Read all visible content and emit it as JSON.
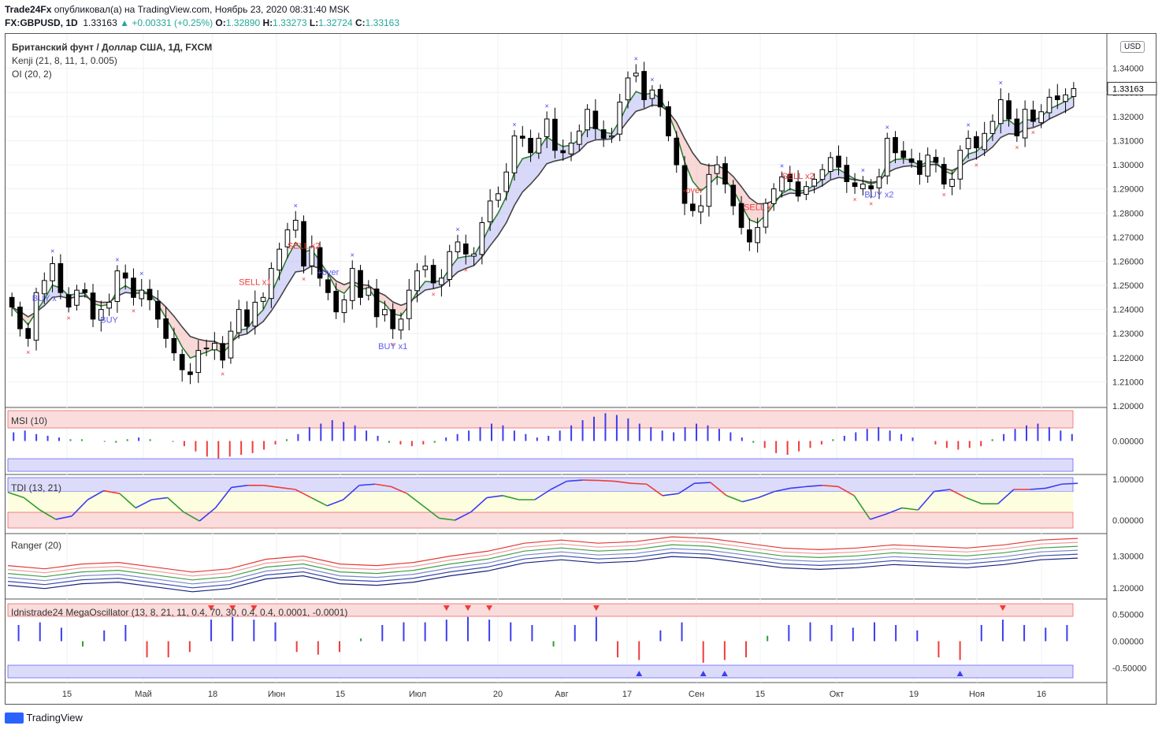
{
  "header": {
    "author": "Trade24Fx",
    "published": "опубликовал(а) на TradingView.com, Ноябрь 23, 2020 08:31:40 MSK",
    "symbol": "FX:GBPUSD, 1D",
    "last": "1.33163",
    "change": "+0.00331 (+0.25%)",
    "o_label": "O:",
    "o": "1.32890",
    "h_label": "H:",
    "h": "1.33273",
    "l_label": "L:",
    "l": "1.32724",
    "c_label": "C:",
    "c": "1.33163"
  },
  "legends": {
    "main": "Британский фунт / Доллар США, 1Д, FXCM",
    "kenji": "Kenji (21, 8, 11, 1, 0.005)",
    "oi": "OI (20, 2)",
    "msi": "MSI (10)",
    "tdi": "TDI (13, 21)",
    "ranger": "Ranger (20)",
    "mega": "Idnistrade24 MegaOscillator (13, 8, 21, 11, 0.4, 70, 30, 0.4, 0.4, 0.0001, -0.0001)"
  },
  "currency_badge": "USD",
  "last_price_label": "1.33163",
  "footer": "TradingView",
  "x_axis_labels": [
    "15",
    "Май",
    "18",
    "Июн",
    "15",
    "Июл",
    "20",
    "Авг",
    "17",
    "Сен",
    "15",
    "Окт",
    "19",
    "Ноя",
    "16"
  ],
  "colors": {
    "bull": "#ffffff",
    "bear": "#000000",
    "blue": "#3d3df0",
    "red": "#ef3b3b",
    "green": "#2e9e2e",
    "up_text": "#26a69a"
  },
  "chart_data": [
    {
      "type": "candlestick",
      "name": "Британский фунт / Доллар США, 1Д, FXCM",
      "y_ticks": [
        "1.34000",
        "1.33000",
        "1.32000",
        "1.31000",
        "1.30000",
        "1.29000",
        "1.28000",
        "1.27000",
        "1.26000",
        "1.25000",
        "1.24000",
        "1.23000",
        "1.22000",
        "1.21000",
        "1.20000"
      ],
      "ylim": [
        1.2,
        1.352
      ],
      "x_range": [
        "Апр",
        "Ноя 23"
      ],
      "close_path": [
        1.241,
        1.232,
        1.228,
        1.247,
        1.252,
        1.259,
        1.247,
        1.241,
        1.248,
        1.247,
        1.236,
        1.24,
        1.243,
        1.256,
        1.253,
        1.245,
        1.248,
        1.244,
        1.236,
        1.228,
        1.222,
        1.215,
        1.213,
        1.223,
        1.224,
        1.226,
        1.219,
        1.231,
        1.24,
        1.233,
        1.243,
        1.245,
        1.257,
        1.265,
        1.273,
        1.277,
        1.258,
        1.266,
        1.253,
        1.247,
        1.239,
        1.244,
        1.257,
        1.245,
        1.249,
        1.237,
        1.24,
        1.232,
        1.236,
        1.248,
        1.256,
        1.258,
        1.251,
        1.253,
        1.264,
        1.268,
        1.263,
        1.263,
        1.276,
        1.285,
        1.288,
        1.297,
        1.312,
        1.311,
        1.305,
        1.311,
        1.319,
        1.306,
        1.305,
        1.309,
        1.314,
        1.323,
        1.315,
        1.311,
        1.312,
        1.326,
        1.336,
        1.338,
        1.327,
        1.331,
        1.324,
        1.312,
        1.3,
        1.284,
        1.281,
        1.283,
        1.296,
        1.3,
        1.292,
        1.283,
        1.274,
        1.268,
        1.274,
        1.284,
        1.29,
        1.295,
        1.293,
        1.287,
        1.291,
        1.294,
        1.298,
        1.303,
        1.299,
        1.293,
        1.291,
        1.292,
        1.29,
        1.295,
        1.311,
        1.305,
        1.303,
        1.301,
        1.296,
        1.304,
        1.301,
        1.292,
        1.294,
        1.306,
        1.311,
        1.307,
        1.313,
        1.318,
        1.327,
        1.319,
        1.312,
        1.323,
        1.318,
        1.322,
        1.328,
        1.327,
        1.329,
        1.3316
      ],
      "annotations": [
        "BUY x",
        "BUY",
        "+over",
        "SELL x2",
        "SELL x1",
        "BUY x1",
        "-over",
        "SELL x",
        "SELL x2",
        "BUY x2"
      ],
      "indicators": [
        "Kenji (21, 8, 11, 1, 0.005)",
        "OI (20, 2)"
      ]
    },
    {
      "type": "histogram",
      "name": "MSI (10)",
      "y_ticks": [
        "0.00000"
      ],
      "series": [
        {
          "values": [
            0.5,
            0.6,
            0.4,
            0.3,
            0.2,
            0.1,
            0.1,
            0.0,
            -0.05,
            -0.1,
            0.1,
            0.2,
            0.1,
            0.0,
            -0.05,
            -0.3,
            -0.6,
            -0.9,
            -1.0,
            -0.9,
            -0.8,
            -0.7,
            -0.5,
            -0.2,
            0.1,
            0.4,
            0.8,
            1.0,
            1.2,
            1.1,
            0.9,
            0.6,
            0.3,
            -0.1,
            -0.2,
            -0.3,
            -0.2,
            -0.1,
            0.2,
            0.4,
            0.6,
            0.8,
            1.0,
            0.9,
            0.6,
            0.4,
            0.2,
            0.3,
            0.6,
            0.9,
            1.2,
            1.4,
            1.6,
            1.5,
            1.3,
            1.0,
            0.8,
            0.6,
            0.5,
            0.8,
            1.0,
            0.9,
            0.7,
            0.5,
            0.2,
            -0.1,
            -0.4,
            -0.7,
            -0.8,
            -0.6,
            -0.4,
            -0.2,
            0.1,
            0.3,
            0.5,
            0.7,
            0.8,
            0.6,
            0.4,
            0.2,
            0.0,
            -0.2,
            -0.4,
            -0.5,
            -0.4,
            -0.3,
            0.1,
            0.4,
            0.7,
            0.9,
            1.0,
            0.8,
            0.6,
            0.4
          ]
        }
      ]
    },
    {
      "type": "line",
      "name": "TDI (13, 21)",
      "y_ticks": [
        "1.00000",
        "0.00000"
      ],
      "series": [
        {
          "values": [
            0.68,
            0.55,
            0.25,
            0.02,
            0.1,
            0.5,
            0.72,
            0.65,
            0.3,
            0.5,
            0.55,
            0.2,
            -0.02,
            0.3,
            0.8,
            0.85,
            0.85,
            0.8,
            0.75,
            0.55,
            0.35,
            0.5,
            0.85,
            0.88,
            0.82,
            0.65,
            0.35,
            0.05,
            0.0,
            0.2,
            0.55,
            0.6,
            0.5,
            0.5,
            0.75,
            0.95,
            0.98,
            0.97,
            0.95,
            0.9,
            0.88,
            0.6,
            0.65,
            0.9,
            0.92,
            0.6,
            0.45,
            0.55,
            0.7,
            0.78,
            0.82,
            0.85,
            0.82,
            0.6,
            0.02,
            0.15,
            0.3,
            0.25,
            0.7,
            0.75,
            0.55,
            0.4,
            0.4,
            0.75,
            0.75,
            0.78,
            0.88,
            0.9
          ]
        }
      ]
    },
    {
      "type": "line",
      "name": "Ranger (20)",
      "y_ticks": [
        "1.30000",
        "1.20000"
      ],
      "series": [
        {
          "values": [
            1.24,
            1.23,
            1.245,
            1.25,
            1.235,
            1.22,
            1.23,
            1.26,
            1.27,
            1.245,
            1.24,
            1.25,
            1.27,
            1.285,
            1.31,
            1.32,
            1.31,
            1.315,
            1.33,
            1.325,
            1.31,
            1.295,
            1.29,
            1.295,
            1.305,
            1.3,
            1.295,
            1.305,
            1.32,
            1.325
          ]
        }
      ]
    },
    {
      "type": "histogram",
      "name": "Idnistrade24 MegaOscillator (13, 8, 21, 11, 0.4, 70, 30, 0.4, 0.4, 0.0001, -0.0001)",
      "y_ticks": [
        "0.50000",
        "0.00000",
        "-0.50000"
      ],
      "series": [
        {
          "values": [
            0.3,
            0.35,
            0.25,
            -0.1,
            0.2,
            0.3,
            -0.3,
            -0.3,
            -0.2,
            0.4,
            0.45,
            0.4,
            0.35,
            -0.2,
            -0.25,
            -0.2,
            0.05,
            0.3,
            0.35,
            0.35,
            0.4,
            0.45,
            0.4,
            0.35,
            0.3,
            -0.1,
            0.3,
            0.45,
            -0.3,
            -0.35,
            0.2,
            0.35,
            -0.4,
            -0.35,
            -0.3,
            0.1,
            0.3,
            0.35,
            0.3,
            0.25,
            0.35,
            0.3,
            0.2,
            -0.3,
            -0.35,
            0.3,
            0.4,
            0.3,
            0.25,
            0.3
          ]
        }
      ]
    }
  ]
}
